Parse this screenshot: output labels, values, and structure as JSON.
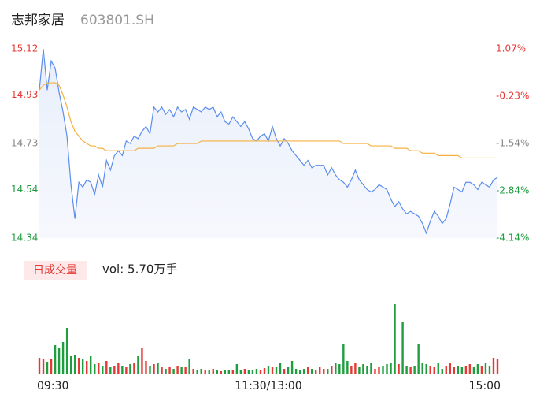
{
  "chart_data": {
    "type": "line",
    "title": "志邦家居",
    "subtitle": "603801.SH",
    "x_labels": [
      "09:30",
      "11:30/13:00",
      "15:00"
    ],
    "ylim": [
      14.34,
      15.12
    ],
    "yticks": [
      15.12,
      14.93,
      14.73,
      14.54,
      14.34
    ],
    "y2lim": [
      -4.14,
      1.07
    ],
    "y2ticks": [
      {
        "value": 1.07,
        "label": "1.07%"
      },
      {
        "value": -0.23,
        "label": "-0.23%"
      },
      {
        "value": -1.54,
        "label": "-1.54%"
      },
      {
        "value": -2.84,
        "label": "-2.84%"
      },
      {
        "value": -4.14,
        "label": "-4.14%"
      }
    ],
    "tick_colors": [
      "#e53935",
      "#e53935",
      "#888888",
      "#1e9e3e",
      "#1e9e3e"
    ],
    "series": [
      {
        "color": "#5b8def",
        "values": [
          14.95,
          15.12,
          14.95,
          15.07,
          15.04,
          14.94,
          14.86,
          14.76,
          14.56,
          14.42,
          14.57,
          14.55,
          14.58,
          14.57,
          14.52,
          14.6,
          14.55,
          14.66,
          14.62,
          14.68,
          14.7,
          14.68,
          14.74,
          14.73,
          14.76,
          14.75,
          14.78,
          14.8,
          14.77,
          14.88,
          14.86,
          14.88,
          14.85,
          14.87,
          14.84,
          14.88,
          14.86,
          14.87,
          14.83,
          14.88,
          14.87,
          14.86,
          14.88,
          14.87,
          14.88,
          14.84,
          14.86,
          14.82,
          14.81,
          14.84,
          14.82,
          14.8,
          14.82,
          14.79,
          14.75,
          14.74,
          14.76,
          14.77,
          14.74,
          14.8,
          14.75,
          14.72,
          14.75,
          14.73,
          14.7,
          14.68,
          14.66,
          14.64,
          14.66,
          14.63,
          14.64,
          14.64,
          14.64,
          14.6,
          14.63,
          14.6,
          14.58,
          14.57,
          14.55,
          14.58,
          14.62,
          14.58,
          14.56,
          14.54,
          14.53,
          14.54,
          14.56,
          14.55,
          14.54,
          14.5,
          14.47,
          14.49,
          14.46,
          14.44,
          14.45,
          14.44,
          14.43,
          14.4,
          14.36,
          14.41,
          14.45,
          14.43,
          14.4,
          14.42,
          14.48,
          14.55,
          14.54,
          14.53,
          14.57,
          14.57,
          14.56,
          14.54,
          14.57,
          14.56,
          14.55,
          14.58,
          14.59
        ]
      },
      {
        "color": "#f5b041",
        "values": [
          14.95,
          14.97,
          14.98,
          14.98,
          14.98,
          14.97,
          14.93,
          14.88,
          14.82,
          14.78,
          14.76,
          14.74,
          14.73,
          14.72,
          14.72,
          14.71,
          14.71,
          14.7,
          14.7,
          14.7,
          14.7,
          14.7,
          14.7,
          14.7,
          14.7,
          14.71,
          14.71,
          14.71,
          14.71,
          14.71,
          14.72,
          14.72,
          14.72,
          14.72,
          14.72,
          14.73,
          14.73,
          14.73,
          14.73,
          14.73,
          14.73,
          14.74,
          14.74,
          14.74,
          14.74,
          14.74,
          14.74,
          14.74,
          14.74,
          14.74,
          14.74,
          14.74,
          14.74,
          14.74,
          14.74,
          14.74,
          14.74,
          14.74,
          14.74,
          14.74,
          14.74,
          14.74,
          14.74,
          14.74,
          14.74,
          14.74,
          14.74,
          14.74,
          14.74,
          14.74,
          14.74,
          14.74,
          14.74,
          14.74,
          14.74,
          14.74,
          14.74,
          14.73,
          14.73,
          14.73,
          14.73,
          14.73,
          14.73,
          14.73,
          14.72,
          14.72,
          14.72,
          14.72,
          14.72,
          14.72,
          14.71,
          14.71,
          14.71,
          14.71,
          14.7,
          14.7,
          14.7,
          14.69,
          14.69,
          14.69,
          14.69,
          14.68,
          14.68,
          14.68,
          14.68,
          14.68,
          14.68,
          14.67,
          14.67,
          14.67,
          14.67,
          14.67,
          14.67,
          14.67,
          14.67,
          14.67,
          14.67
        ]
      }
    ],
    "volume": {
      "label": "日成交量",
      "annotation": "vol: 5.70万手",
      "up_color": "#e53935",
      "down_color": "#1e9e3e",
      "values": [
        400,
        360,
        300,
        360,
        720,
        640,
        800,
        1160,
        440,
        480,
        400,
        360,
        320,
        440,
        240,
        280,
        200,
        320,
        160,
        200,
        280,
        200,
        160,
        240,
        280,
        440,
        660,
        320,
        200,
        240,
        280,
        160,
        120,
        160,
        120,
        200,
        160,
        160,
        360,
        120,
        80,
        120,
        100,
        80,
        120,
        80,
        60,
        80,
        100,
        80,
        240,
        100,
        120,
        80,
        100,
        120,
        80,
        140,
        200,
        160,
        160,
        280,
        120,
        160,
        320,
        120,
        80,
        120,
        160,
        120,
        100,
        160,
        120,
        120,
        200,
        280,
        240,
        760,
        320,
        200,
        280,
        160,
        240,
        200,
        280,
        120,
        160,
        200,
        240,
        280,
        1760,
        240,
        1320,
        200,
        160,
        200,
        740,
        280,
        240,
        200,
        160,
        280,
        120,
        200,
        280,
        160,
        200,
        160,
        200,
        240,
        160,
        240,
        200,
        280,
        200,
        400,
        360
      ]
    }
  }
}
